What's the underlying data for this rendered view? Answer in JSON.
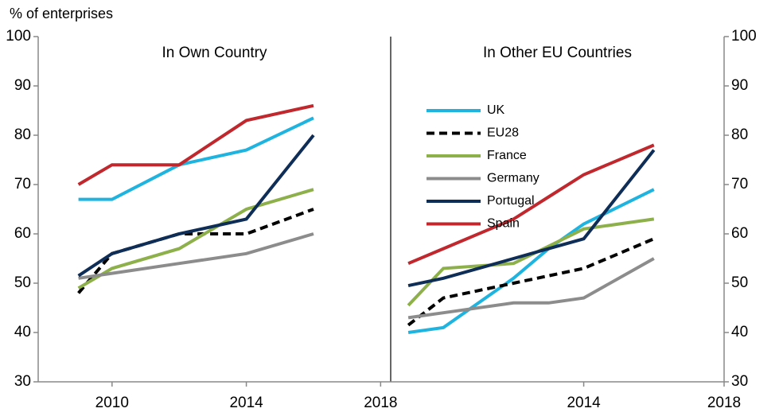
{
  "chart_data": [
    {
      "type": "line",
      "subtitle": "In Own Country",
      "y_label": "% of enterprises",
      "x": [
        2009,
        2010,
        2012,
        2014,
        2016
      ],
      "xlim": [
        2007.8,
        2018.3
      ],
      "xticks": [
        2010,
        2014,
        2018
      ],
      "ylim": [
        30,
        100
      ],
      "yticks": [
        30,
        40,
        50,
        60,
        70,
        80,
        90,
        100
      ],
      "axis_side": "left",
      "series": [
        {
          "name": "UK",
          "color": "#1fb4e0",
          "dashed": false,
          "values": [
            67,
            67,
            74,
            77,
            83.5
          ]
        },
        {
          "name": "EU28",
          "color": "#000000",
          "dashed": true,
          "values": [
            48,
            56,
            60,
            60,
            65
          ]
        },
        {
          "name": "France",
          "color": "#8db04a",
          "dashed": false,
          "values": [
            49,
            53,
            57,
            65,
            69
          ]
        },
        {
          "name": "Germany",
          "color": "#8c8c8c",
          "dashed": false,
          "values": [
            51,
            52,
            54,
            56,
            60
          ]
        },
        {
          "name": "Portugal",
          "color": "#0e2d57",
          "dashed": false,
          "values": [
            51.5,
            56,
            60,
            63,
            80
          ]
        },
        {
          "name": "Spain",
          "color": "#c0282e",
          "dashed": false,
          "values": [
            70,
            74,
            74,
            83,
            86
          ]
        }
      ]
    },
    {
      "type": "line",
      "subtitle": "In Other EU Countries",
      "x": [
        2009,
        2010,
        2012,
        2013,
        2014,
        2016
      ],
      "xlim": [
        2008.5,
        2018
      ],
      "xticks": [
        2014,
        2018
      ],
      "ylim": [
        30,
        100
      ],
      "yticks": [
        30,
        40,
        50,
        60,
        70,
        80,
        90,
        100
      ],
      "axis_side": "right",
      "series": [
        {
          "name": "UK",
          "color": "#1fb4e0",
          "dashed": false,
          "values": [
            40,
            41,
            51,
            57,
            62,
            69
          ]
        },
        {
          "name": "EU28",
          "color": "#000000",
          "dashed": true,
          "values": [
            41.5,
            47,
            50,
            51.5,
            53,
            59
          ]
        },
        {
          "name": "France",
          "color": "#8db04a",
          "dashed": false,
          "values": [
            45.5,
            53,
            54,
            57.5,
            61,
            63
          ]
        },
        {
          "name": "Germany",
          "color": "#8c8c8c",
          "dashed": false,
          "values": [
            43,
            44,
            46,
            46,
            47,
            55
          ]
        },
        {
          "name": "Portugal",
          "color": "#0e2d57",
          "dashed": false,
          "values": [
            49.5,
            51,
            55,
            57,
            59,
            77
          ]
        },
        {
          "name": "Spain",
          "color": "#c0282e",
          "dashed": false,
          "values": [
            54,
            57,
            63,
            67.5,
            72,
            78
          ]
        }
      ]
    }
  ]
}
